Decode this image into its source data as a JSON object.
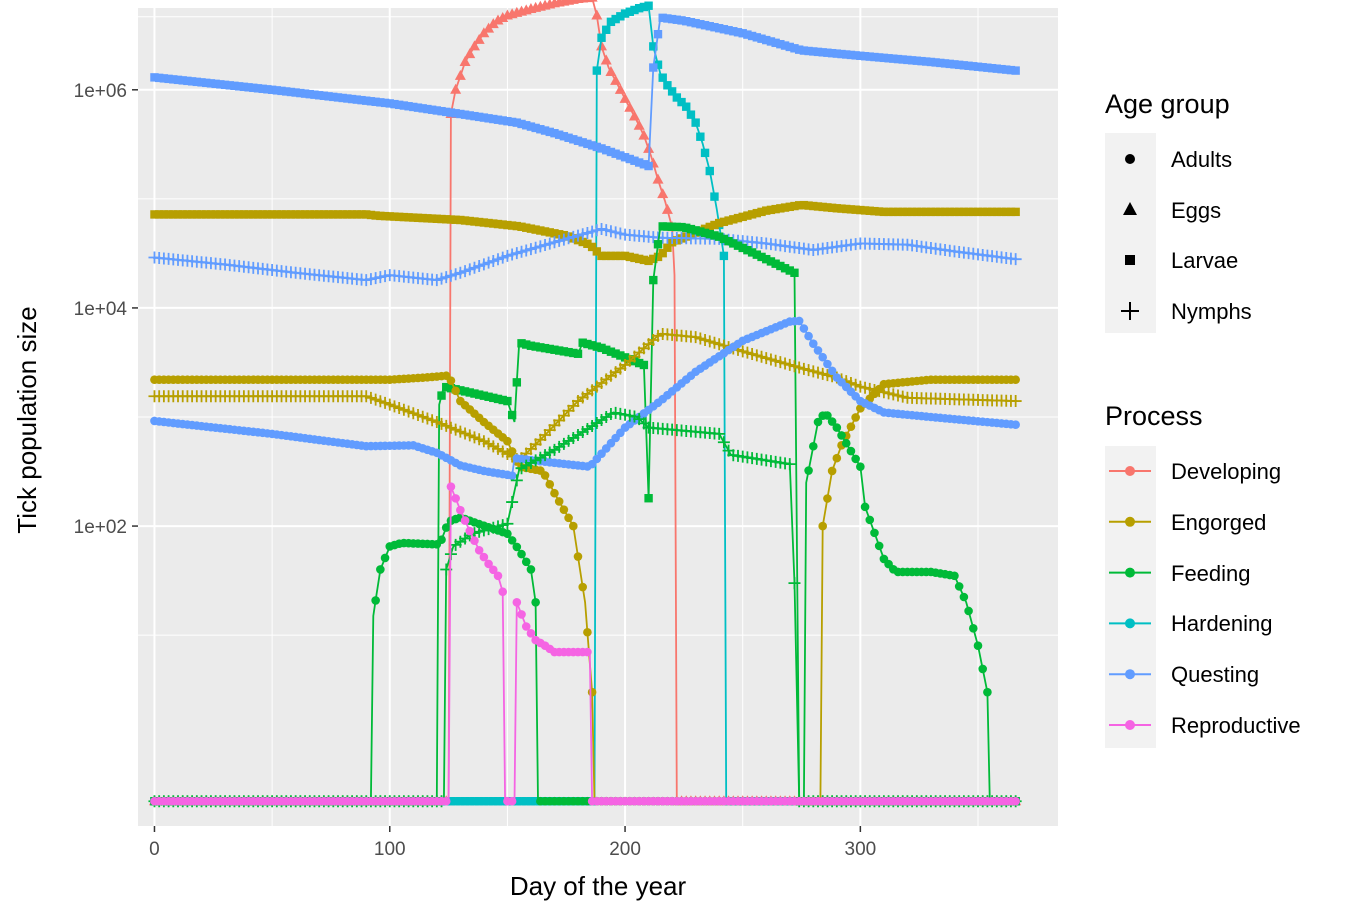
{
  "chart_data": {
    "type": "line",
    "xlabel": "Day of the year",
    "ylabel": "Tick population size",
    "xlim": [
      -7,
      384
    ],
    "ylim_log10": [
      -0.75,
      6.75
    ],
    "y_scale": "log10",
    "x_ticks": [
      0,
      100,
      200,
      300
    ],
    "x_tick_labels": [
      "0",
      "100",
      "200",
      "300"
    ],
    "y_ticks": [
      100,
      10000,
      1000000
    ],
    "y_tick_labels": [
      "1e+02",
      "1e+04",
      "1e+06"
    ],
    "grid": true,
    "legend_position": "right",
    "legends": {
      "age_group": {
        "title": "Age group",
        "items": [
          {
            "label": "Adults",
            "shape": "circle"
          },
          {
            "label": "Eggs",
            "shape": "triangle"
          },
          {
            "label": "Larvae",
            "shape": "square"
          },
          {
            "label": "Nymphs",
            "shape": "plus"
          }
        ]
      },
      "process": {
        "title": "Process",
        "items": [
          {
            "label": "Developing",
            "color": "#F8766D"
          },
          {
            "label": "Engorged",
            "color": "#B79F00"
          },
          {
            "label": "Feeding",
            "color": "#00BA38"
          },
          {
            "label": "Hardening",
            "color": "#00BFC4"
          },
          {
            "label": "Questing",
            "color": "#619CFF"
          },
          {
            "label": "Reproductive",
            "color": "#F564E3"
          }
        ]
      }
    },
    "series": [
      {
        "process": "Developing",
        "age_group": "Eggs",
        "color": "#F8766D",
        "shape": "triangle",
        "points": [
          [
            0,
            0.3
          ],
          [
            125,
            0.3
          ],
          [
            126,
            600000
          ],
          [
            128,
            1000000
          ],
          [
            132,
            1800000
          ],
          [
            136,
            2500000
          ],
          [
            140,
            3300000
          ],
          [
            145,
            4200000
          ],
          [
            150,
            4800000
          ],
          [
            160,
            5500000
          ],
          [
            170,
            6200000
          ],
          [
            180,
            6800000
          ],
          [
            186,
            7000000
          ],
          [
            188,
            4800000
          ],
          [
            190,
            2500000
          ],
          [
            193,
            1600000
          ],
          [
            197,
            1100000
          ],
          [
            201,
            750000
          ],
          [
            205,
            520000
          ],
          [
            208,
            380000
          ],
          [
            211,
            250000
          ],
          [
            214,
            150000
          ],
          [
            217,
            95000
          ],
          [
            220,
            55000
          ],
          [
            221,
            20000
          ],
          [
            222,
            0.3
          ],
          [
            366,
            0.3
          ]
        ]
      },
      {
        "process": "Hardening",
        "age_group": "Larvae",
        "color": "#00BFC4",
        "shape": "square",
        "points": [
          [
            0,
            0.3
          ],
          [
            187,
            0.3
          ],
          [
            188,
            1500000
          ],
          [
            190,
            3000000
          ],
          [
            194,
            4200000
          ],
          [
            200,
            5000000
          ],
          [
            206,
            5600000
          ],
          [
            210,
            5900000
          ],
          [
            212,
            2500000
          ],
          [
            215,
            1400000
          ],
          [
            218,
            1100000
          ],
          [
            222,
            850000
          ],
          [
            226,
            700000
          ],
          [
            230,
            500000
          ],
          [
            233,
            320000
          ],
          [
            236,
            180000
          ],
          [
            239,
            80000
          ],
          [
            242,
            30000
          ],
          [
            243,
            0.3
          ],
          [
            366,
            0.3
          ]
        ]
      },
      {
        "process": "Questing",
        "age_group": "Larvae",
        "color": "#619CFF",
        "shape": "square",
        "points": [
          [
            0,
            1300000
          ],
          [
            50,
            1000000
          ],
          [
            100,
            750000
          ],
          [
            130,
            600000
          ],
          [
            154,
            500000
          ],
          [
            170,
            400000
          ],
          [
            190,
            290000
          ],
          [
            210,
            200000
          ],
          [
            212,
            1600000
          ],
          [
            215,
            4600000
          ],
          [
            225,
            4300000
          ],
          [
            250,
            3300000
          ],
          [
            275,
            2300000
          ],
          [
            300,
            2050000
          ],
          [
            330,
            1800000
          ],
          [
            366,
            1500000
          ]
        ]
      },
      {
        "process": "Engorged",
        "age_group": "Larvae",
        "color": "#B79F00",
        "shape": "square",
        "points": [
          [
            0,
            72000
          ],
          [
            50,
            72000
          ],
          [
            90,
            72000
          ],
          [
            95,
            70000
          ],
          [
            130,
            64000
          ],
          [
            155,
            56000
          ],
          [
            175,
            46000
          ],
          [
            185,
            38000
          ],
          [
            190,
            30000
          ],
          [
            200,
            30000
          ],
          [
            210,
            27000
          ],
          [
            215,
            30000
          ],
          [
            220,
            40000
          ],
          [
            240,
            60000
          ],
          [
            260,
            78000
          ],
          [
            275,
            88000
          ],
          [
            290,
            82000
          ],
          [
            310,
            76000
          ],
          [
            366,
            76000
          ]
        ]
      },
      {
        "process": "Questing",
        "age_group": "Nymphs",
        "color": "#619CFF",
        "shape": "plus",
        "points": [
          [
            0,
            29000
          ],
          [
            30,
            25000
          ],
          [
            60,
            21000
          ],
          [
            90,
            18000
          ],
          [
            100,
            20000
          ],
          [
            120,
            18000
          ],
          [
            130,
            21000
          ],
          [
            150,
            30000
          ],
          [
            170,
            40000
          ],
          [
            190,
            53000
          ],
          [
            200,
            47000
          ],
          [
            215,
            44000
          ],
          [
            240,
            43000
          ],
          [
            260,
            39000
          ],
          [
            280,
            34000
          ],
          [
            300,
            39000
          ],
          [
            320,
            38000
          ],
          [
            340,
            33000
          ],
          [
            366,
            28000
          ]
        ]
      },
      {
        "process": "Feeding",
        "age_group": "Larvae",
        "color": "#00BA38",
        "shape": "square",
        "points": [
          [
            0,
            0.3
          ],
          [
            120,
            0.3
          ],
          [
            121,
            1300
          ],
          [
            123,
            1900
          ],
          [
            150,
            1400
          ],
          [
            153,
            900
          ],
          [
            155,
            4800
          ],
          [
            160,
            4500
          ],
          [
            180,
            3800
          ],
          [
            182,
            4800
          ],
          [
            190,
            4300
          ],
          [
            208,
            3000
          ],
          [
            210,
            180
          ],
          [
            212,
            18000
          ],
          [
            215,
            56000
          ],
          [
            225,
            55000
          ],
          [
            240,
            45000
          ],
          [
            260,
            28000
          ],
          [
            272,
            21000
          ],
          [
            274,
            0.3
          ],
          [
            366,
            0.3
          ]
        ]
      },
      {
        "process": "Engorged",
        "age_group": "Adults",
        "color": "#B79F00",
        "shape": "circle",
        "points": [
          [
            0,
            2200
          ],
          [
            40,
            2200
          ],
          [
            80,
            2200
          ],
          [
            100,
            2200
          ],
          [
            115,
            2300
          ],
          [
            125,
            2400
          ],
          [
            130,
            1400
          ],
          [
            140,
            900
          ],
          [
            150,
            600
          ],
          [
            155,
            350
          ],
          [
            165,
            320
          ],
          [
            170,
            200
          ],
          [
            178,
            100
          ],
          [
            183,
            20
          ],
          [
            186,
            3
          ],
          [
            187,
            0.3
          ],
          [
            283,
            0.3
          ],
          [
            284,
            100
          ],
          [
            288,
            320
          ],
          [
            292,
            550
          ],
          [
            297,
            900
          ],
          [
            300,
            1200
          ],
          [
            310,
            2000
          ],
          [
            330,
            2200
          ],
          [
            366,
            2200
          ]
        ]
      },
      {
        "process": "Engorged",
        "age_group": "Nymphs",
        "color": "#B79F00",
        "shape": "plus",
        "points": [
          [
            0,
            1550
          ],
          [
            50,
            1550
          ],
          [
            90,
            1550
          ],
          [
            100,
            1300
          ],
          [
            120,
            900
          ],
          [
            140,
            600
          ],
          [
            155,
            400
          ],
          [
            165,
            650
          ],
          [
            180,
            1400
          ],
          [
            200,
            3000
          ],
          [
            215,
            5800
          ],
          [
            230,
            5400
          ],
          [
            250,
            4000
          ],
          [
            275,
            2800
          ],
          [
            290,
            2300
          ],
          [
            300,
            1900
          ],
          [
            320,
            1500
          ],
          [
            366,
            1400
          ]
        ]
      },
      {
        "process": "Questing",
        "age_group": "Adults",
        "color": "#619CFF",
        "shape": "circle",
        "points": [
          [
            0,
            920
          ],
          [
            50,
            700
          ],
          [
            90,
            540
          ],
          [
            110,
            550
          ],
          [
            120,
            470
          ],
          [
            130,
            360
          ],
          [
            140,
            320
          ],
          [
            152,
            290
          ],
          [
            153,
            420
          ],
          [
            170,
            380
          ],
          [
            185,
            350
          ],
          [
            200,
            800
          ],
          [
            215,
            1400
          ],
          [
            230,
            2600
          ],
          [
            250,
            5000
          ],
          [
            270,
            7500
          ],
          [
            274,
            7600
          ],
          [
            280,
            4700
          ],
          [
            290,
            2300
          ],
          [
            300,
            1400
          ],
          [
            310,
            1100
          ],
          [
            330,
            1000
          ],
          [
            366,
            850
          ]
        ]
      },
      {
        "process": "Feeding",
        "age_group": "Nymphs",
        "color": "#00BA38",
        "shape": "plus",
        "points": [
          [
            0,
            0.3
          ],
          [
            123,
            0.3
          ],
          [
            124,
            40
          ],
          [
            127,
            65
          ],
          [
            135,
            85
          ],
          [
            150,
            105
          ],
          [
            155,
            330
          ],
          [
            170,
            500
          ],
          [
            185,
            800
          ],
          [
            195,
            1100
          ],
          [
            205,
            1000
          ],
          [
            210,
            800
          ],
          [
            240,
            700
          ],
          [
            245,
            450
          ],
          [
            270,
            370
          ],
          [
            272,
            30
          ],
          [
            274,
            0.3
          ],
          [
            366,
            0.3
          ]
        ]
      },
      {
        "process": "Feeding",
        "age_group": "Adults",
        "color": "#00BA38",
        "shape": "circle",
        "points": [
          [
            0,
            0.3
          ],
          [
            92,
            0.3
          ],
          [
            93,
            15
          ],
          [
            96,
            40
          ],
          [
            100,
            65
          ],
          [
            105,
            70
          ],
          [
            120,
            68
          ],
          [
            122,
            75
          ],
          [
            125,
            110
          ],
          [
            130,
            120
          ],
          [
            135,
            110
          ],
          [
            150,
            85
          ],
          [
            155,
            60
          ],
          [
            160,
            40
          ],
          [
            162,
            20
          ],
          [
            163,
            0.3
          ],
          [
            276,
            0.3
          ],
          [
            277,
            250
          ],
          [
            282,
            900
          ],
          [
            285,
            1100
          ],
          [
            290,
            800
          ],
          [
            300,
            350
          ],
          [
            302,
            150
          ],
          [
            310,
            50
          ],
          [
            315,
            38
          ],
          [
            330,
            38
          ],
          [
            340,
            35
          ],
          [
            345,
            20
          ],
          [
            350,
            8
          ],
          [
            354,
            3
          ],
          [
            355,
            0.3
          ],
          [
            366,
            0.3
          ]
        ]
      },
      {
        "process": "Reproductive",
        "age_group": "Adults",
        "color": "#F564E3",
        "shape": "circle",
        "points": [
          [
            0,
            0.3
          ],
          [
            125,
            0.3
          ],
          [
            126,
            230
          ],
          [
            130,
            140
          ],
          [
            134,
            90
          ],
          [
            138,
            60
          ],
          [
            142,
            45
          ],
          [
            146,
            35
          ],
          [
            148,
            25
          ],
          [
            149,
            0.3
          ],
          [
            153,
            0.3
          ],
          [
            154,
            20
          ],
          [
            158,
            12
          ],
          [
            162,
            9
          ],
          [
            166,
            8
          ],
          [
            170,
            7
          ],
          [
            178,
            7
          ],
          [
            185,
            7
          ],
          [
            186,
            0.3
          ],
          [
            366,
            0.3
          ]
        ]
      }
    ]
  }
}
